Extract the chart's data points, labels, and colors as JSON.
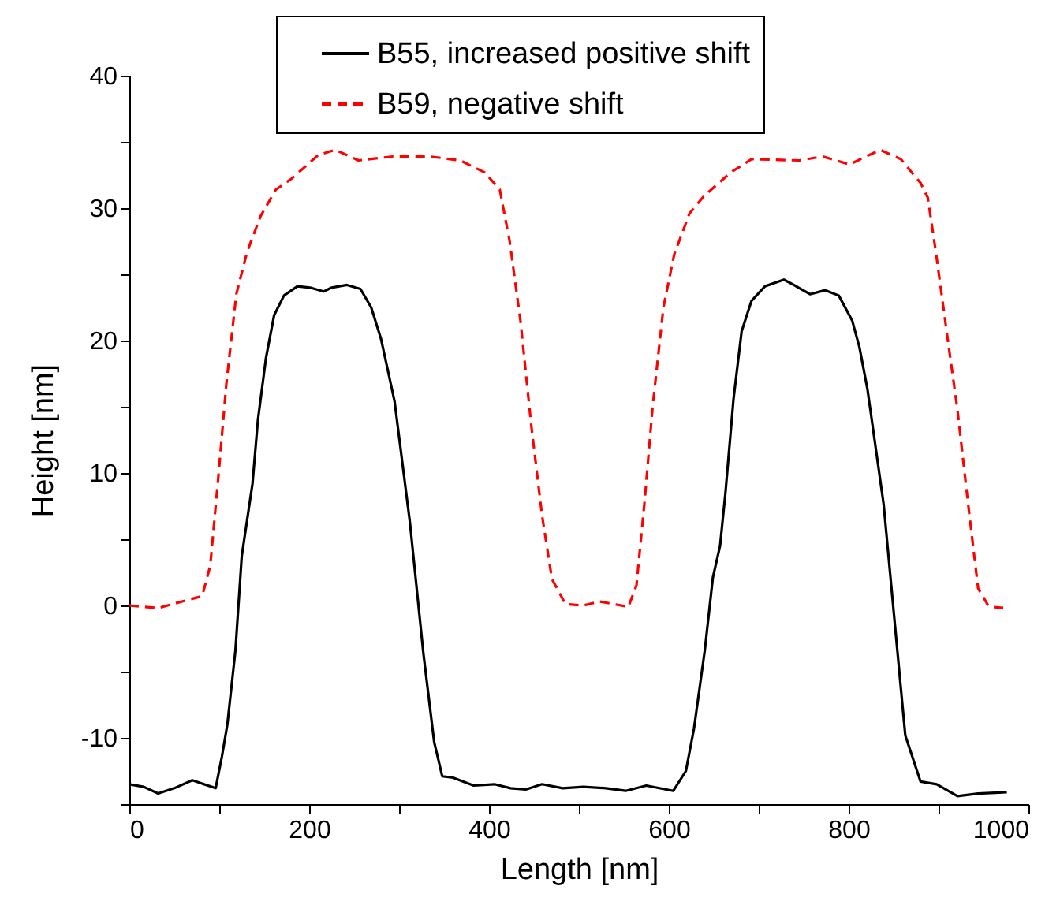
{
  "chart_data": {
    "type": "line",
    "xlabel": "Length [nm]",
    "ylabel": "Height [nm]",
    "xlim": [
      0,
      1000
    ],
    "ylim": [
      -15,
      40
    ],
    "xticks": [
      0,
      {
        "value": 100,
        "label": null
      },
      200,
      {
        "value": 300,
        "label": null
      },
      400,
      {
        "value": 500,
        "label": null
      },
      600,
      {
        "value": 700,
        "label": null
      },
      800,
      {
        "value": 900,
        "label": null
      },
      1000
    ],
    "yticks": [
      {
        "value": -15,
        "label": null
      },
      -10,
      {
        "value": -5,
        "label": null
      },
      0,
      {
        "value": 5,
        "label": null
      },
      10,
      {
        "value": 15,
        "label": null
      },
      20,
      {
        "value": 25,
        "label": null
      },
      30,
      {
        "value": 35,
        "label": null
      },
      40
    ],
    "grid": false,
    "legend": "top",
    "marker": "none",
    "series": [
      {
        "name": "B55, increased positive shift",
        "color": "#000000",
        "line_style": "solid",
        "x": [
          0,
          16,
          32,
          50,
          70,
          96,
          103,
          109,
          118,
          125,
          137,
          143,
          152,
          161,
          172,
          187,
          201,
          216,
          225,
          242,
          257,
          269,
          280,
          295,
          312,
          327,
          339,
          348,
          360,
          383,
          406,
          424,
          441,
          459,
          482,
          505,
          530,
          552,
          575,
          605,
          619,
          628,
          640,
          649,
          657,
          663,
          672,
          681,
          692,
          707,
          728,
          739,
          757,
          774,
          789,
          804,
          812,
          821,
          839,
          851,
          863,
          880,
          898,
          921,
          944,
          976
        ],
        "values": [
          -13.5,
          -13.7,
          -14.2,
          -13.8,
          -13.2,
          -13.8,
          -11.4,
          -9,
          -3.4,
          3.7,
          9.2,
          14,
          18.7,
          21.9,
          23.4,
          24.1,
          24,
          23.7,
          24,
          24.2,
          23.9,
          22.5,
          20.1,
          15.4,
          6.3,
          -3.6,
          -10.3,
          -12.9,
          -13,
          -13.6,
          -13.5,
          -13.8,
          -13.9,
          -13.5,
          -13.8,
          -13.7,
          -13.8,
          -14,
          -13.6,
          -14,
          -12.5,
          -9.3,
          -3.4,
          2.1,
          4.5,
          8.5,
          15.6,
          20.7,
          23,
          24.1,
          24.6,
          24.2,
          23.5,
          23.8,
          23.4,
          21.5,
          19.5,
          16.3,
          7.6,
          -1.1,
          -9.8,
          -13.3,
          -13.5,
          -14.4,
          -14.2,
          -14.1
        ]
      },
      {
        "name": "B59, negative shift",
        "color": "#ff0000",
        "line_style": "dashed",
        "x": [
          0,
          32,
          64,
          81,
          90,
          99,
          108,
          119,
          131,
          146,
          163,
          180,
          210,
          229,
          255,
          293,
          334,
          368,
          395,
          412,
          423,
          435,
          447,
          459,
          470,
          485,
          505,
          523,
          555,
          564,
          573,
          582,
          594,
          606,
          623,
          639,
          669,
          692,
          745,
          771,
          801,
          835,
          858,
          880,
          888,
          897,
          909,
          921,
          933,
          944,
          956,
          976
        ],
        "values": [
          0,
          -0.2,
          0.4,
          0.7,
          3,
          9.7,
          16.8,
          23.5,
          26.7,
          29.4,
          31.4,
          32.2,
          34,
          34.4,
          33.6,
          33.9,
          33.9,
          33.6,
          32.7,
          31.4,
          27.5,
          21.5,
          13.6,
          6.8,
          2,
          0.1,
          0,
          0.3,
          -0.1,
          1.5,
          7.8,
          15,
          22.5,
          26.5,
          29.6,
          30.9,
          32.7,
          33.7,
          33.6,
          33.9,
          33.3,
          34.4,
          33.7,
          31.9,
          30.8,
          26.7,
          20.7,
          14.8,
          7.6,
          1.3,
          -0.1,
          -0.2
        ]
      }
    ]
  }
}
